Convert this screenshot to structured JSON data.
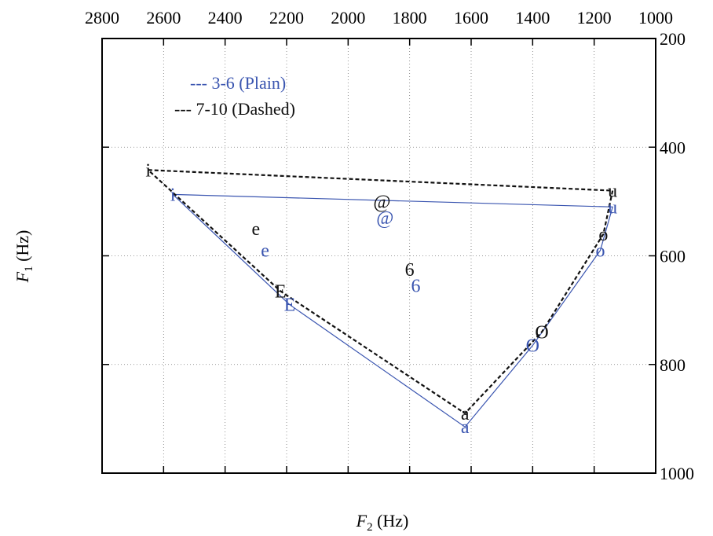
{
  "chart_data": {
    "type": "scatter",
    "title": "",
    "xlabel": "F",
    "xlabel_sub": "2",
    "xlabel_unit": " (Hz)",
    "ylabel": "F",
    "ylabel_sub": "1",
    "ylabel_unit": " (Hz)",
    "xlim": [
      2800,
      1000
    ],
    "ylim": [
      200,
      1000
    ],
    "x_reversed": true,
    "y_reversed": true,
    "x_axis_position": "top",
    "y_axis_position": "right",
    "xticks": [
      "2800",
      "2600",
      "2400",
      "2200",
      "2000",
      "1800",
      "1600",
      "1400",
      "1200",
      "1000"
    ],
    "yticks": [
      "200",
      "400",
      "600",
      "800",
      "1000"
    ],
    "grid": true,
    "legend_position": "top-left",
    "series": [
      {
        "name": "3-6 (Plain)",
        "legend_label": "--- 3-6 (Plain)",
        "color": "#3a55b0",
        "line_style": "solid",
        "points": [
          {
            "label": "i",
            "x": 2570,
            "y": 487
          },
          {
            "label": "e",
            "x": 2270,
            "y": 590
          },
          {
            "label": "E",
            "x": 2190,
            "y": 690
          },
          {
            "label": "@",
            "x": 1880,
            "y": 530
          },
          {
            "label": "6",
            "x": 1780,
            "y": 655
          },
          {
            "label": "a",
            "x": 1620,
            "y": 915
          },
          {
            "label": "O",
            "x": 1400,
            "y": 765
          },
          {
            "label": "o",
            "x": 1180,
            "y": 590
          },
          {
            "label": "u",
            "x": 1140,
            "y": 510
          }
        ],
        "polygon": [
          "i",
          "u",
          "o",
          "O",
          "a",
          "E",
          "i"
        ]
      },
      {
        "name": "7-10 (Dashed)",
        "legend_label": "--- 7-10 (Dashed)",
        "color": "#111111",
        "line_style": "dashed",
        "points": [
          {
            "label": "i",
            "x": 2650,
            "y": 442
          },
          {
            "label": "e",
            "x": 2300,
            "y": 550
          },
          {
            "label": "E",
            "x": 2220,
            "y": 665
          },
          {
            "label": "@",
            "x": 1890,
            "y": 500
          },
          {
            "label": "6",
            "x": 1800,
            "y": 625
          },
          {
            "label": "a",
            "x": 1620,
            "y": 890
          },
          {
            "label": "O",
            "x": 1370,
            "y": 740
          },
          {
            "label": "o",
            "x": 1170,
            "y": 560
          },
          {
            "label": "u",
            "x": 1140,
            "y": 480
          }
        ],
        "polygon": [
          "i",
          "u",
          "o",
          "O",
          "a",
          "E",
          "i"
        ]
      }
    ]
  }
}
